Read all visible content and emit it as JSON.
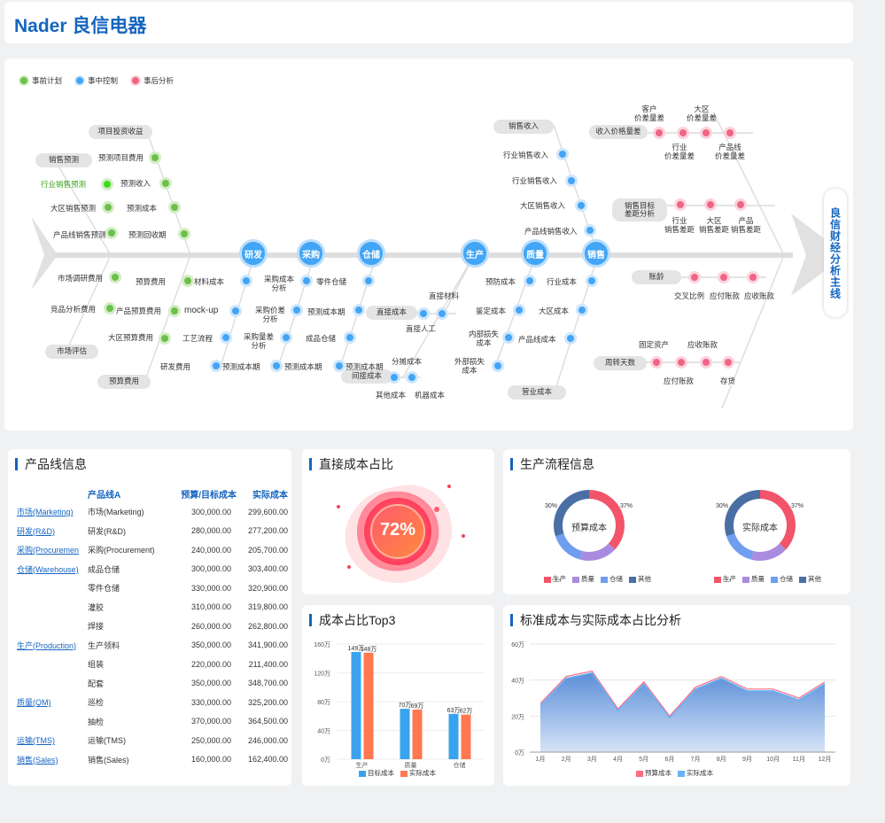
{
  "header": {
    "title": "Nader 良信电器"
  },
  "fishbone": {
    "legend": [
      {
        "label": "事前计划",
        "color": "#6cc04a"
      },
      {
        "label": "事中控制",
        "color": "#42a5f5"
      },
      {
        "label": "事后分析",
        "color": "#f06584"
      }
    ],
    "head_label": "良信财经分析主线",
    "main_nodes": [
      "研发",
      "采购",
      "仓储",
      "生产",
      "质量",
      "销售"
    ],
    "pills": {
      "p1": "项目投资收益",
      "p2": "销售预测",
      "p3": "市场评估",
      "p4": "预算费用",
      "p5": "直接成本",
      "p6": "间接成本",
      "p7": "销售收入",
      "p8": "营业成本",
      "p9": "收入价格量差",
      "p10": "销售目标\n差距分析",
      "p11": "账龄",
      "p12": "周转天数"
    },
    "labels": {
      "l1": "预测项目费用",
      "l2": "行业销售预测",
      "l3": "预测收入",
      "l4": "大区销售预测",
      "l5": "预测成本",
      "l6": "产品线销售预测",
      "l7": "预测回收期",
      "l8": "市场调研费用",
      "l9": "竞品分析费用",
      "l10": "预算费用",
      "l11": "产品预算费用",
      "l12": "大区预算费用",
      "l13": "研发费用",
      "l14": "材料成本",
      "l15": "mock-up",
      "l16": "工艺流程",
      "l17": "预测成本期",
      "l18": "采购成本\n分析",
      "l19": "采购价差\n分析",
      "l20": "采购量差\n分析",
      "l21": "预测成本期",
      "l22": "零件仓储",
      "l23": "预测成本期",
      "l24": "成品仓储",
      "l25": "预测成本期",
      "l26": "直接材料",
      "l27": "直接人工",
      "l28": "分摊成本",
      "l29": "其他成本",
      "l30": "机器成本",
      "l31": "预防成本",
      "l32": "鉴定成本",
      "l33": "内部损失\n成本",
      "l34": "外部损失\n成本",
      "l35": "行业销售收入",
      "l36": "行业销售收入",
      "l37": "大区销售收入",
      "l38": "产品线销售收入",
      "l39": "行业成本",
      "l40": "大区成本",
      "l41": "产品线成本",
      "l42": "客户\n价差量差",
      "l43": "大区\n价差量差",
      "l44": "行业\n价差量差",
      "l45": "产品线\n价差量差",
      "l46": "行业\n销售差距",
      "l47": "大区\n销售差距",
      "l48": "产品\n销售差距",
      "l49": "交叉比例",
      "l50": "应付账款",
      "l51": "应收账款",
      "l52": "固定资产",
      "l53": "应收账款",
      "l54": "应付账款",
      "l55": "存货"
    }
  },
  "product_line": {
    "title": "产品线信息",
    "headers": [
      "产品线A",
      "预算/目标成本",
      "实际成本"
    ],
    "rows": [
      {
        "link": "市场(Marketing)",
        "name": "市场(Marketing)",
        "budget": "300,000.00",
        "actual": "299,600.00"
      },
      {
        "link": "研发(R&D)",
        "name": "研发(R&D)",
        "budget": "280,000.00",
        "actual": "277,200.00"
      },
      {
        "link": "采购(Procuremen",
        "name": "采购(Procurement)",
        "budget": "240,000.00",
        "actual": "205,700.00"
      },
      {
        "link": "仓储(Warehouse)",
        "name": "成品仓储",
        "budget": "300,000.00",
        "actual": "303,400.00"
      },
      {
        "link": "",
        "name": "零件仓储",
        "budget": "330,000.00",
        "actual": "320,900.00"
      },
      {
        "link": "",
        "name": "灌胶",
        "budget": "310,000.00",
        "actual": "319,800.00"
      },
      {
        "link": "",
        "name": "焊接",
        "budget": "260,000.00",
        "actual": "262,800.00"
      },
      {
        "link": "生产(Production)",
        "name": "生产领料",
        "budget": "350,000.00",
        "actual": "341,900.00"
      },
      {
        "link": "",
        "name": "组装",
        "budget": "220,000.00",
        "actual": "211,400.00"
      },
      {
        "link": "",
        "name": "配套",
        "budget": "350,000.00",
        "actual": "348,700.00"
      },
      {
        "link": "质量(QM)",
        "name": "巡检",
        "budget": "330,000.00",
        "actual": "325,200.00"
      },
      {
        "link": "",
        "name": "抽检",
        "budget": "370,000.00",
        "actual": "364,500.00"
      },
      {
        "link": "运输(TMS)",
        "name": "运输(TMS)",
        "budget": "250,000.00",
        "actual": "246,000.00"
      },
      {
        "link": "销售(Sales)",
        "name": "销售(Sales)",
        "budget": "160,000.00",
        "actual": "162,400.00"
      }
    ]
  },
  "direct_cost": {
    "title": "直接成本占比",
    "value": "72%"
  },
  "production": {
    "title": "生产流程信息",
    "donuts": [
      {
        "center": "预算成本"
      },
      {
        "center": "实际成本"
      }
    ],
    "legend": [
      "生产",
      "质量",
      "仓储",
      "其他"
    ],
    "legend_colors": [
      "#f2546a",
      "#a98be0",
      "#6f9ef0",
      "#4a6fa5"
    ]
  },
  "top3": {
    "title": "成本占比Top3",
    "legend": [
      "目标成本",
      "实际成本"
    ]
  },
  "std_actual": {
    "title": "标准成本与实际成本占比分析",
    "legend": [
      "预算成本",
      "实际成本"
    ]
  },
  "chart_data": [
    {
      "type": "pie",
      "title": "",
      "categories": [
        "生产",
        "质量",
        "仓储",
        "其他"
      ],
      "values": [
        37,
        17,
        16,
        30
      ],
      "center_label": "预算成本",
      "colors": [
        "#f2546a",
        "#a98be0",
        "#6f9ef0",
        "#4a6fa5"
      ]
    },
    {
      "type": "pie",
      "title": "",
      "categories": [
        "生产",
        "质量",
        "仓储",
        "其他"
      ],
      "values": [
        37,
        17,
        16,
        30
      ],
      "center_label": "实际成本",
      "colors": [
        "#f2546a",
        "#a98be0",
        "#6f9ef0",
        "#4a6fa5"
      ]
    },
    {
      "type": "bar",
      "title": "成本占比Top3",
      "categories": [
        "生产",
        "质量",
        "仓储"
      ],
      "series": [
        {
          "name": "目标成本",
          "values": [
            149,
            70,
            63
          ],
          "labels": [
            "149万",
            "70万",
            "63万"
          ],
          "color": "#3aa3f0"
        },
        {
          "name": "实际成本",
          "values": [
            148,
            69,
            62
          ],
          "labels": [
            "148万",
            "69万",
            "62万"
          ],
          "color": "#ff7850"
        }
      ],
      "ylim": [
        0,
        160
      ],
      "yticks": [
        0,
        40,
        80,
        120,
        160
      ],
      "ytick_labels": [
        "0万",
        "40万",
        "80万",
        "120万",
        "160万"
      ]
    },
    {
      "type": "area",
      "title": "标准成本与实际成本占比分析",
      "categories": [
        "1月",
        "2月",
        "3月",
        "4月",
        "5月",
        "6月",
        "7月",
        "8月",
        "9月",
        "10月",
        "11月",
        "12月"
      ],
      "series": [
        {
          "name": "预算成本",
          "values": [
            27,
            42,
            45,
            24,
            39,
            20,
            36,
            42,
            35,
            35,
            30,
            39
          ],
          "color": "#ff6b81"
        },
        {
          "name": "实际成本",
          "values": [
            26,
            41,
            44,
            23,
            38,
            19,
            35,
            41,
            34,
            34,
            29,
            38
          ],
          "color": "#6ab3f5"
        }
      ],
      "ylim": [
        0,
        60
      ],
      "yticks": [
        0,
        20,
        40,
        60
      ],
      "ytick_labels": [
        "0万",
        "20万",
        "40万",
        "60万"
      ]
    }
  ]
}
